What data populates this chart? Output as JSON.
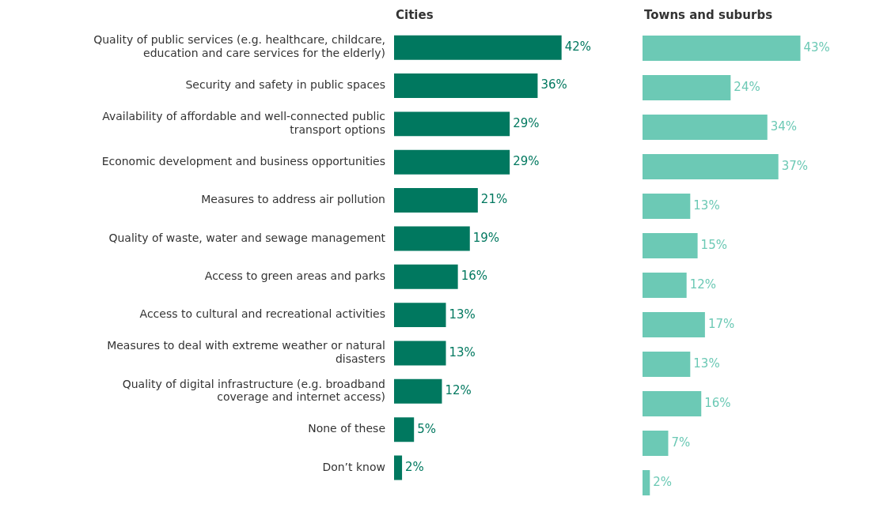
{
  "chart_data": [
    {
      "type": "bar",
      "orientation": "horizontal",
      "title": "Cities",
      "categories": [
        "Quality of public services (e.g. healthcare, childcare, education and care services for the elderly)",
        "Security and safety in public spaces",
        "Availability of affordable and well-connected public transport options",
        "Economic development and business opportunities",
        "Measures to address air pollution",
        "Quality of waste, water and sewage management",
        "Access to green areas and parks",
        "Access to cultural and recreational activities",
        "Measures to deal with extreme weather or natural disasters",
        "Quality of digital infrastructure (e.g. broadband coverage and internet access)",
        "None of these",
        "Don’t know"
      ],
      "values": [
        42,
        36,
        29,
        29,
        21,
        19,
        16,
        13,
        13,
        12,
        5,
        2
      ],
      "value_labels": [
        "42%",
        "36%",
        "29%",
        "29%",
        "21%",
        "19%",
        "16%",
        "13%",
        "13%",
        "12%",
        "5%",
        "2%"
      ],
      "color": "#00785f",
      "legend": false,
      "tick_labels": "y"
    },
    {
      "type": "bar",
      "orientation": "horizontal",
      "title": "Towns and suburbs",
      "categories": [
        null,
        null,
        null,
        null,
        null,
        null,
        null,
        null,
        null,
        null,
        null,
        null
      ],
      "values": [
        43,
        24,
        34,
        37,
        13,
        15,
        12,
        17,
        13,
        16,
        7,
        2
      ],
      "value_labels": [
        "43%",
        "24%",
        "34%",
        "37%",
        "13%",
        "15%",
        "12%",
        "17%",
        "13%",
        "16%",
        "7%",
        "2%"
      ],
      "color": "#6cc9b5",
      "legend": false,
      "tick_labels": false
    }
  ]
}
